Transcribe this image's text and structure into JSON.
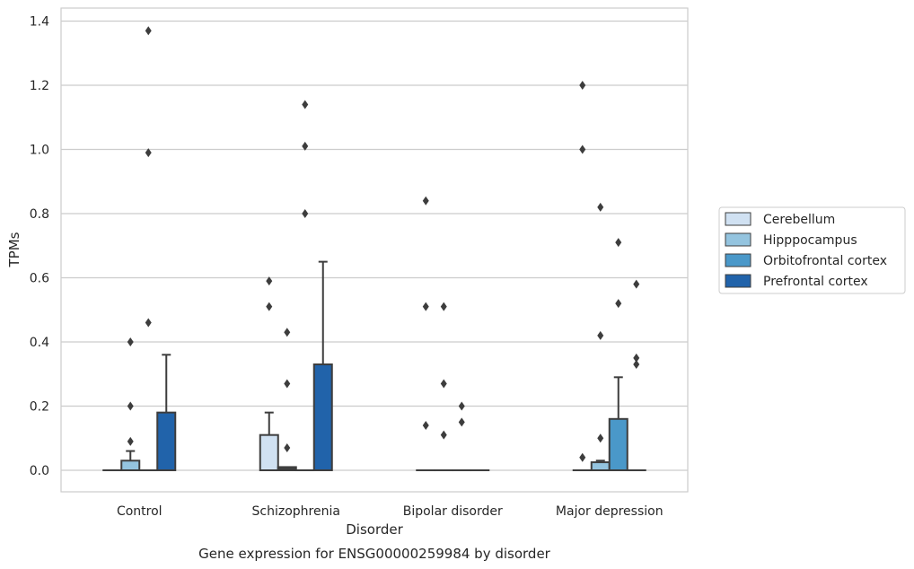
{
  "chart_data": {
    "type": "box",
    "title": "",
    "caption": "Gene expression for ENSG00000259984 by disorder",
    "xlabel": "Disorder",
    "ylabel": "TPMs",
    "ylim": [
      -0.07,
      1.44
    ],
    "yticks": [
      0.0,
      0.2,
      0.4,
      0.6,
      0.8,
      1.0,
      1.2,
      1.4
    ],
    "ytick_labels": [
      "0.0",
      "0.2",
      "0.4",
      "0.6",
      "0.8",
      "1.0",
      "1.2",
      "1.4"
    ],
    "grid": "horizontal",
    "legend_position": "right",
    "categories": [
      "Control",
      "Schizophrenia",
      "Bipolar disorder",
      "Major depression"
    ],
    "series": [
      {
        "name": "Cerebellum",
        "color": "#d0e1f2",
        "boxes": [
          {
            "q1": 0,
            "median": 0,
            "q3": 0,
            "whisker_low": 0,
            "whisker_high": 0,
            "outliers": []
          },
          {
            "q1": 0,
            "median": 0,
            "q3": 0.11,
            "whisker_low": 0,
            "whisker_high": 0.18,
            "outliers": [
              0.51,
              0.59
            ]
          },
          {
            "q1": 0,
            "median": 0,
            "q3": 0,
            "whisker_low": 0,
            "whisker_high": 0,
            "outliers": [
              0.14,
              0.51,
              0.84
            ]
          },
          {
            "q1": 0,
            "median": 0,
            "q3": 0,
            "whisker_low": 0,
            "whisker_high": 0,
            "outliers": [
              0.04,
              1.0,
              1.2
            ]
          }
        ]
      },
      {
        "name": "Hipppocampus",
        "color": "#94c4df",
        "boxes": [
          {
            "q1": 0,
            "median": 0,
            "q3": 0.03,
            "whisker_low": 0,
            "whisker_high": 0.06,
            "outliers": [
              0.09,
              0.2,
              0.4
            ]
          },
          {
            "q1": 0,
            "median": 0.005,
            "q3": 0.01,
            "whisker_low": 0,
            "whisker_high": 0.01,
            "outliers": [
              0.07,
              0.27,
              0.43
            ]
          },
          {
            "q1": 0,
            "median": 0,
            "q3": 0,
            "whisker_low": 0,
            "whisker_high": 0,
            "outliers": [
              0.11,
              0.27,
              0.51
            ]
          },
          {
            "q1": 0,
            "median": 0,
            "q3": 0.025,
            "whisker_low": 0,
            "whisker_high": 0.03,
            "outliers": [
              0.1,
              0.42,
              0.82
            ]
          }
        ]
      },
      {
        "name": "Orbitofrontal cortex",
        "color": "#4a98c9",
        "boxes": [
          {
            "q1": 0,
            "median": 0,
            "q3": 0,
            "whisker_low": 0,
            "whisker_high": 0,
            "outliers": [
              0.46,
              0.99,
              1.37
            ]
          },
          {
            "q1": 0,
            "median": 0,
            "q3": 0,
            "whisker_low": 0,
            "whisker_high": 0,
            "outliers": [
              0.8,
              1.01,
              1.14
            ]
          },
          {
            "q1": 0,
            "median": 0,
            "q3": 0,
            "whisker_low": 0,
            "whisker_high": 0,
            "outliers": [
              0.15,
              0.2
            ]
          },
          {
            "q1": 0,
            "median": 0,
            "q3": 0.16,
            "whisker_low": 0,
            "whisker_high": 0.29,
            "outliers": [
              0.52,
              0.71
            ]
          }
        ]
      },
      {
        "name": "Prefrontal cortex",
        "color": "#2163aa",
        "boxes": [
          {
            "q1": 0,
            "median": 0,
            "q3": 0.18,
            "whisker_low": 0,
            "whisker_high": 0.36,
            "outliers": []
          },
          {
            "q1": 0,
            "median": 0,
            "q3": 0.33,
            "whisker_low": 0,
            "whisker_high": 0.65,
            "outliers": []
          },
          {
            "q1": 0,
            "median": 0,
            "q3": 0,
            "whisker_low": 0,
            "whisker_high": 0,
            "outliers": []
          },
          {
            "q1": 0,
            "median": 0,
            "q3": 0,
            "whisker_low": 0,
            "whisker_high": 0,
            "outliers": [
              0.33,
              0.35,
              0.58
            ]
          }
        ]
      }
    ]
  }
}
